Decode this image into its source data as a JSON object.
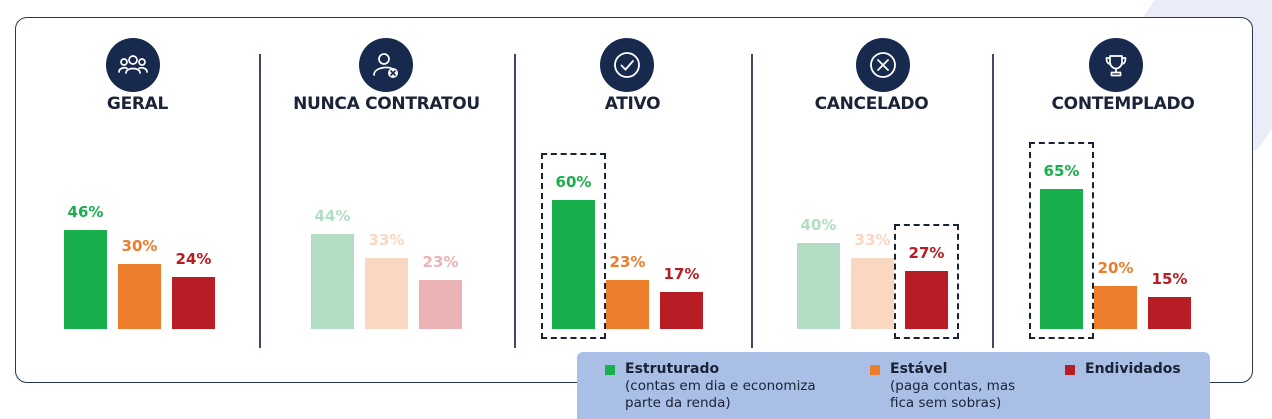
{
  "colors": {
    "estruturado": "#1aaf4d",
    "estavel": "#ec7d2a",
    "endividados": "#b81c24",
    "estruturado_faded": "#b3ddc3",
    "estavel_faded": "#fad7c1",
    "endividados_faded": "#ebb3b5",
    "icon_bg": "#172a4d",
    "legend_bg": "#a9bfe6"
  },
  "panels": [
    {
      "title": "GERAL",
      "icon": "people-group-icon",
      "highlight": "none"
    },
    {
      "title": "NUNCA CONTRATOU",
      "icon": "user-x-icon",
      "highlight": "none"
    },
    {
      "title": "ATIVO",
      "icon": "check-circle-icon",
      "highlight": "estruturado"
    },
    {
      "title": "CANCELADO",
      "icon": "x-circle-icon",
      "highlight": "endividados"
    },
    {
      "title": "CONTEMPLADO",
      "icon": "trophy-icon",
      "highlight": "estruturado"
    }
  ],
  "legend": {
    "estruturado": {
      "title": "Estruturado",
      "desc1": "(contas em dia e economiza",
      "desc2": "parte da renda)"
    },
    "estavel": {
      "title": "Estável",
      "desc1": "(paga contas, mas",
      "desc2": "fica sem sobras)"
    },
    "endividados": {
      "title": "Endividados"
    }
  },
  "chart_data": {
    "type": "bar",
    "categories": [
      "GERAL",
      "NUNCA CONTRATOU",
      "ATIVO",
      "CANCELADO",
      "CONTEMPLADO"
    ],
    "series": [
      {
        "name": "Estruturado",
        "values": [
          46,
          44,
          60,
          40,
          65
        ],
        "labels": [
          "46%",
          "44%",
          "60%",
          "40%",
          "65%"
        ]
      },
      {
        "name": "Estável",
        "values": [
          30,
          33,
          23,
          33,
          20
        ],
        "labels": [
          "30%",
          "33%",
          "23%",
          "33%",
          "20%"
        ]
      },
      {
        "name": "Endividados",
        "values": [
          24,
          23,
          17,
          27,
          15
        ],
        "labels": [
          "24%",
          "23%",
          "17%",
          "27%",
          "15%"
        ]
      }
    ],
    "emphasized_panels": [
      0,
      2,
      4
    ],
    "unit": "%",
    "ylim": [
      0,
      100
    ],
    "legend_position": "bottom-right",
    "grid": false
  }
}
